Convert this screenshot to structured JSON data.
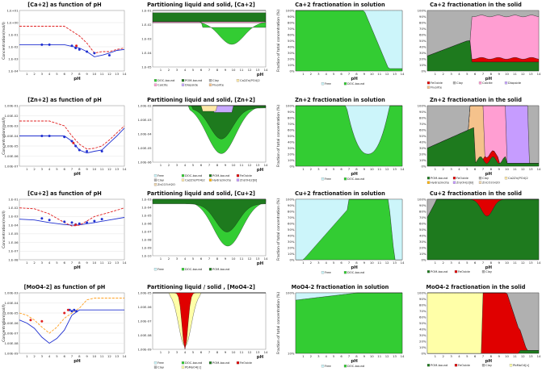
{
  "rows": [
    {
      "conc": {
        "title": "[Ca+2] as function of pH",
        "ylabel": "Concentration(mol/l)",
        "xlabel": "pH",
        "ticks": [
          "1.E+01",
          "1.E+00",
          "1.E-01",
          "1.E-02",
          "1.E-03",
          "1.E-04"
        ]
      },
      "part": {
        "title": "Partitioning liquid and solid, [Ca+2]",
        "xlabel": "pH",
        "ticks": [
          "1.E-01",
          "1.E-02",
          "1.E-03",
          "1.E-04",
          "1.E-05"
        ]
      },
      "sol": {
        "title": "Ca+2 fractionation in solution",
        "ylabel": "Fraction of total concentration (%)",
        "xlabel": "pH",
        "ticks": [
          "100%",
          "90%",
          "80%",
          "70%",
          "60%",
          "50%",
          "40%",
          "30%",
          "20%",
          "10%",
          "0%"
        ]
      },
      "solid": {
        "title": "Ca+2 fractionation in the solid",
        "xlabel": "pH",
        "ticks": [
          "100%",
          "90%",
          "80%",
          "70%",
          "60%",
          "50%",
          "40%",
          "30%",
          "20%",
          "10%",
          "0%"
        ]
      }
    },
    {
      "conc": {
        "title": "[Zn+2] as function of pH",
        "ylabel": "Concentration(mol/l)",
        "xlabel": "pH",
        "ticks": [
          "1.00E-01",
          "1.00E-02",
          "1.00E-03",
          "1.00E-04",
          "1.00E-05",
          "1.00E-06",
          "1.00E-07"
        ]
      },
      "part": {
        "title": "Partitioning liquid and solid, [Zn+2]",
        "xlabel": "pH",
        "ticks": [
          "1.00E-02",
          "1.00E-03",
          "1.00E-04",
          "1.00E-05",
          "1.00E-06"
        ]
      },
      "sol": {
        "title": "Zn+2 fractionation in solution",
        "ylabel": "Fraction of total concentration (%)",
        "xlabel": "pH",
        "ticks": [
          "100%",
          "90%",
          "80%",
          "70%",
          "60%",
          "50%",
          "40%",
          "30%",
          "20%",
          "10%",
          "0%"
        ]
      },
      "solid": {
        "title": "Zn+2 fractionation in the solid",
        "xlabel": "pH",
        "ticks": [
          "100%",
          "90%",
          "80%",
          "70%",
          "60%",
          "50%",
          "40%",
          "30%",
          "20%",
          "10%",
          "0%"
        ]
      }
    },
    {
      "conc": {
        "title": "[Cu+2] as function of pH",
        "ylabel": "Concentration(mol/l)",
        "xlabel": "pH",
        "ticks": [
          "1.E-01",
          "1.E-02",
          "1.E-03",
          "1.E-04",
          "1.E-05",
          "1.E-06",
          "1.E-07",
          "1.E-08"
        ]
      },
      "part": {
        "title": "Partitioning liquid and solid, [Cu+2]",
        "xlabel": "pH",
        "ticks": [
          "1.E-03",
          "1.E-04",
          "1.E-05",
          "1.E-06",
          "1.E-07",
          "1.E-08",
          "1.E-09",
          "1.E-10"
        ]
      },
      "sol": {
        "title": "Cu+2 fractionation in solution",
        "ylabel": "Fraction of total concentration (%)",
        "xlabel": "pH",
        "ticks": [
          "100%",
          "90%",
          "80%",
          "70%",
          "60%",
          "50%",
          "40%",
          "30%",
          "20%",
          "10%",
          "0%"
        ]
      },
      "solid": {
        "title": "Cu+2 fractionation in the solid",
        "xlabel": "pH",
        "ticks": [
          "100%",
          "90%",
          "80%",
          "70%",
          "60%",
          "50%",
          "40%",
          "30%",
          "20%",
          "10%",
          "0%"
        ]
      }
    },
    {
      "conc": {
        "title": "[MoO4-2] as function of pH",
        "ylabel": "Concentration(mol/l)",
        "xlabel": "pH",
        "ticks": [
          "1.00E-03",
          "1.00E-04",
          "1.00E-05",
          "1.00E-06",
          "1.00E-07",
          "1.00E-08",
          "1.00E-09"
        ]
      },
      "part": {
        "title": "Partitioning liquid / solid , [MoO4-2]",
        "xlabel": "pH",
        "ticks": [
          "1.00E-05",
          "1.00E-06",
          "1.00E-07",
          "1.00E-08",
          "1.00E-09"
        ]
      },
      "sol": {
        "title": "MoO4-2 fractionation in solution",
        "ylabel": "Fraction of total concentration (%)",
        "xlabel": "pH",
        "ticks": [
          "100%",
          "10%"
        ]
      },
      "solid": {
        "title": "MoO4-2 fractionation in the solid",
        "xlabel": "pH",
        "ticks": [
          "100%",
          "90%",
          "80%",
          "70%",
          "60%",
          "50%",
          "40%",
          "30%",
          "20%",
          "10%",
          "0%"
        ]
      }
    }
  ],
  "legends": {
    "part_ca": [
      "DOC-bound",
      "POM-bound",
      "Clay",
      "Ca2Zn(PO4)2",
      "Calcite",
      "Diopside",
      "Fluorite"
    ],
    "sol_ca": [
      "Free",
      "DOC-bound"
    ],
    "solid_ca": [
      "FeOxide",
      "Clay",
      "Calcite",
      "Diopside",
      "Fluorite"
    ],
    "part_zn": [
      "Free",
      "DOC-bound",
      "POM-bound",
      "FeOxide",
      "Clay",
      "Ca2Zn(PO4)2",
      "Hydrozincite",
      "Zn(OH)2[B]",
      "ZnCO3:H2O"
    ],
    "sol_zn": [
      "Free",
      "DOC-bound"
    ],
    "solid_zn": [
      "POM-bound",
      "FeOxide",
      "Clay",
      "Ca2Zn(PO4)2",
      "Hydrozincite",
      "Zn(OH)2[B]",
      "ZnCO3:H2O"
    ],
    "part_cu": [
      "Free",
      "DOC-bound",
      "POM-bound"
    ],
    "sol_cu": [
      "Free",
      "DOC-bound"
    ],
    "solid_cu": [
      "POM-bound",
      "FeOxide",
      "Clay"
    ],
    "part_mo": [
      "Free",
      "DOC-bound",
      "POM-bound",
      "FeOxide",
      "Clay",
      "PbMoO4[c]"
    ],
    "sol_mo": [
      "Free",
      "DOC-bound"
    ],
    "solid_mo": [
      "POM-bound",
      "FeOxide",
      "Clay",
      "PbMoO4[c]"
    ]
  },
  "colors": {
    "free": "#ccf5fa",
    "doc": "#33cc33",
    "pom": "#1e7a1e",
    "clay": "#b0b0b0",
    "feox": "#e00000",
    "cazn": "#ffe9a8",
    "calcite": "#ff9ed2",
    "diopside": "#c8a8ff",
    "fluorite": "#f5c28c",
    "hydrozincite": "#ffb400",
    "znoh": "#c69cff",
    "znco3": "#f0d8b0",
    "pbmoo4": "#ffffa8",
    "blue": "#2030d0",
    "red": "#e02020",
    "orange": "#ffa020"
  },
  "chart_data": [
    {
      "type": "line",
      "title": "[Ca+2] as function of pH",
      "xlabel": "pH",
      "ylabel": "Concentration(mol/l)",
      "xlim": [
        0,
        14
      ],
      "ylog": true,
      "ylim": [
        0.0001,
        10
      ],
      "series": [
        {
          "style": "solid",
          "color": "#2030d0",
          "x": [
            0,
            2,
            4,
            6,
            8,
            9,
            10,
            11,
            12,
            13,
            14
          ],
          "y": [
            0.015,
            0.015,
            0.015,
            0.015,
            0.008,
            0.004,
            0.0015,
            0.002,
            0.003,
            0.005,
            0.006
          ]
        },
        {
          "style": "dash",
          "color": "#e02020",
          "x": [
            0,
            2,
            4,
            6,
            8,
            9,
            10,
            11,
            12,
            13,
            14
          ],
          "y": [
            0.5,
            0.5,
            0.5,
            0.5,
            0.08,
            0.02,
            0.003,
            0.004,
            0.004,
            0.006,
            0.008
          ]
        },
        {
          "style": "dots",
          "color": "#2030d0",
          "x": [
            3,
            4,
            7,
            7.5,
            8,
            9,
            10,
            12
          ],
          "y": [
            0.015,
            0.015,
            0.012,
            0.008,
            0.006,
            0.004,
            0.003,
            0.002
          ]
        },
        {
          "style": "dots",
          "color": "#e02020",
          "x": [
            7.6
          ],
          "y": [
            0.012
          ]
        }
      ]
    },
    {
      "type": "area",
      "title": "Partitioning liquid and solid, [Ca+2]",
      "xlim": [
        0,
        14
      ],
      "ylog": true,
      "ylim": [
        1e-05,
        0.1
      ]
    },
    {
      "type": "area",
      "title": "Ca+2 fractionation in solution",
      "xlim": [
        0,
        14
      ],
      "ylim": [
        0,
        100
      ]
    },
    {
      "type": "area",
      "title": "Ca+2 fractionation in the solid",
      "xlim": [
        0,
        14
      ],
      "ylim": [
        0,
        100
      ]
    },
    {
      "type": "line",
      "title": "[Zn+2] as function of pH",
      "xlabel": "pH",
      "ylabel": "Concentration(mol/l)",
      "xlim": [
        0,
        14
      ],
      "ylog": true,
      "ylim": [
        1e-07,
        0.1
      ],
      "series": [
        {
          "style": "solid",
          "color": "#2030d0",
          "x": [
            0,
            2,
            4,
            6,
            7,
            8,
            9,
            10,
            11,
            12,
            13,
            14
          ],
          "y": [
            0.0001,
            0.0001,
            0.0001,
            0.0001,
            3e-05,
            4e-06,
            2e-06,
            3e-06,
            4e-06,
            2e-05,
            0.0001,
            0.0006
          ]
        },
        {
          "style": "dash",
          "color": "#e02020",
          "x": [
            0,
            2,
            4,
            6,
            7,
            8,
            9,
            10,
            11,
            12,
            13,
            14
          ],
          "y": [
            0.003,
            0.003,
            0.003,
            0.001,
            0.0001,
            1.5e-05,
            5e-06,
            6e-06,
            1e-05,
            4e-05,
            0.0002,
            0.001
          ]
        },
        {
          "style": "dots",
          "color": "#2030d0",
          "x": [
            3,
            4,
            6,
            7,
            7.5,
            8,
            9,
            11
          ],
          "y": [
            0.0001,
            0.0001,
            8e-05,
            3e-05,
            1e-05,
            4e-06,
            3e-06,
            3e-06
          ]
        },
        {
          "style": "dots",
          "color": "#e02020",
          "x": [
            7.2
          ],
          "y": [
            2e-05
          ]
        }
      ]
    },
    {
      "type": "area",
      "title": "Partitioning liquid and solid, [Zn+2]",
      "xlim": [
        0,
        14
      ],
      "ylog": true,
      "ylim": [
        1e-06,
        0.01
      ]
    },
    {
      "type": "area",
      "title": "Zn+2 fractionation in solution",
      "xlim": [
        0,
        14
      ],
      "ylim": [
        0,
        100
      ]
    },
    {
      "type": "area",
      "title": "Zn+2 fractionation in the solid",
      "xlim": [
        0,
        14
      ],
      "ylim": [
        0,
        100
      ]
    },
    {
      "type": "line",
      "title": "[Cu+2] as function of pH",
      "xlabel": "pH",
      "ylabel": "Concentration(mol/l)",
      "xlim": [
        0,
        14
      ],
      "ylog": true,
      "ylim": [
        1e-08,
        0.1
      ],
      "series": [
        {
          "style": "solid",
          "color": "#2030d0",
          "x": [
            0,
            2,
            4,
            6,
            7,
            8,
            9,
            10,
            12,
            14
          ],
          "y": [
            0.0005,
            0.0004,
            0.0002,
            0.00012,
            0.0001,
            0.00011,
            0.00015,
            0.0002,
            0.0004,
            0.0008
          ]
        },
        {
          "style": "dash",
          "color": "#e02020",
          "x": [
            0,
            2,
            4,
            6,
            7,
            8,
            9,
            10,
            12,
            14
          ],
          "y": [
            0.01,
            0.008,
            0.002,
            0.0002,
            8e-05,
            0.0001,
            0.0003,
            0.001,
            0.003,
            0.01
          ]
        },
        {
          "style": "dots",
          "color": "#2030d0",
          "x": [
            3,
            4,
            6,
            7,
            7.5,
            8,
            9,
            10,
            11
          ],
          "y": [
            0.0006,
            0.0004,
            0.00025,
            0.0002,
            0.00012,
            0.00015,
            0.0002,
            0.0003,
            0.0005
          ]
        },
        {
          "style": "dots",
          "color": "#e02020",
          "x": [
            7.5
          ],
          "y": [
            0.00011
          ]
        }
      ]
    },
    {
      "type": "area",
      "title": "Partitioning liquid and solid, [Cu+2]",
      "xlim": [
        0,
        14
      ],
      "ylog": true,
      "ylim": [
        1e-10,
        0.001
      ]
    },
    {
      "type": "area",
      "title": "Cu+2 fractionation in solution",
      "xlim": [
        0,
        14
      ],
      "ylim": [
        0,
        100
      ]
    },
    {
      "type": "area",
      "title": "Cu+2 fractionation in the solid",
      "xlim": [
        0,
        14
      ],
      "ylim": [
        0,
        100
      ]
    },
    {
      "type": "line",
      "title": "[MoO4-2] as function of pH",
      "xlabel": "pH",
      "ylabel": "Concentration(mol/l)",
      "xlim": [
        0,
        14
      ],
      "ylog": true,
      "ylim": [
        1e-09,
        0.001
      ],
      "series": [
        {
          "style": "solid",
          "color": "#2030d0",
          "x": [
            0,
            1,
            2,
            3,
            4,
            5,
            6,
            7,
            8,
            9,
            10,
            14
          ],
          "y": [
            2e-06,
            1e-06,
            3e-07,
            4e-08,
            1e-08,
            3e-08,
            2e-07,
            6e-06,
            2e-05,
            2e-05,
            2e-05,
            2e-05
          ]
        },
        {
          "style": "dash",
          "color": "#ffa020",
          "x": [
            0,
            1,
            2,
            3,
            4,
            5,
            6,
            7,
            8,
            9,
            10,
            14
          ],
          "y": [
            1e-05,
            6e-06,
            2e-06,
            4e-07,
            1e-07,
            4e-07,
            3e-06,
            1e-05,
            3e-05,
            0.0002,
            0.0003,
            0.0003
          ]
        },
        {
          "style": "dots",
          "color": "#2030d0",
          "x": [
            6.7,
            7,
            7.3,
            7.6
          ],
          "y": [
            2e-05,
            1.5e-05,
            2e-05,
            1.5e-05
          ]
        },
        {
          "style": "dots",
          "color": "#e02020",
          "x": [
            1.5,
            3,
            6,
            6.5
          ],
          "y": [
            2e-06,
            1.5e-06,
            1e-05,
            2e-05
          ]
        }
      ]
    },
    {
      "type": "area",
      "title": "Partitioning liquid / solid , [MoO4-2]",
      "xlim": [
        0,
        14
      ],
      "ylog": true,
      "ylim": [
        1e-09,
        1e-05
      ]
    },
    {
      "type": "area",
      "title": "MoO4-2 fractionation in solution",
      "xlim": [
        0,
        14
      ]
    },
    {
      "type": "area",
      "title": "MoO4-2 fractionation in the solid",
      "xlim": [
        0,
        14
      ],
      "ylim": [
        0,
        100
      ]
    }
  ]
}
